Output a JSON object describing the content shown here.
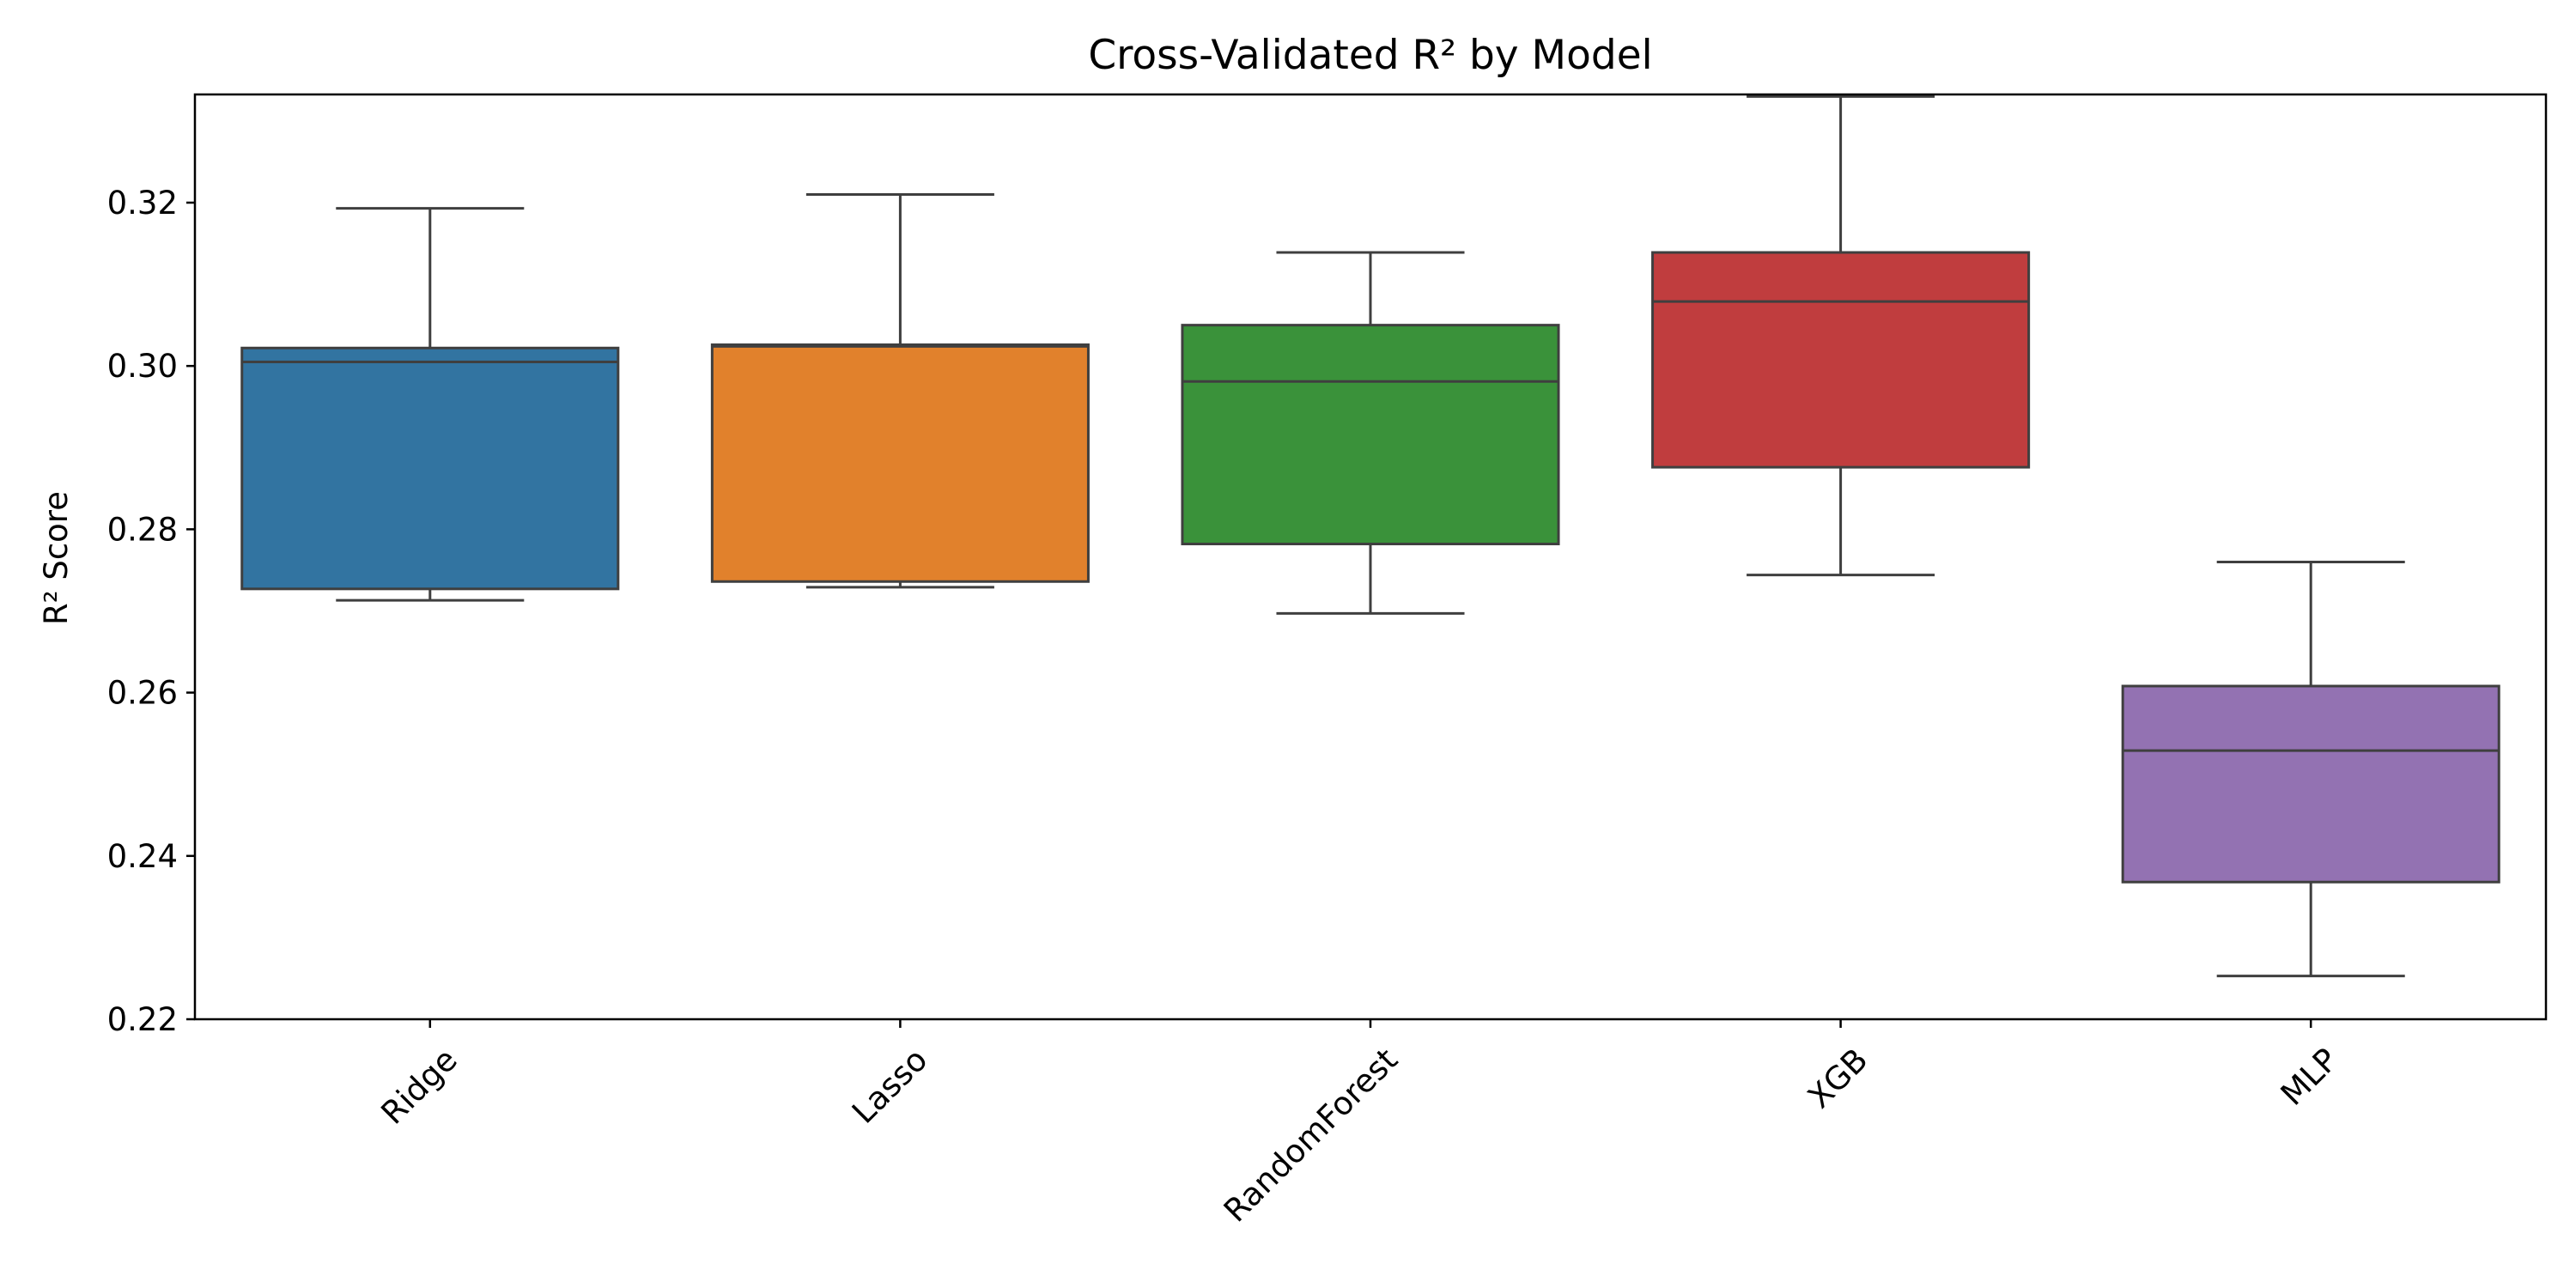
{
  "chart_data": {
    "type": "box",
    "title": "Cross-Validated R² by Model",
    "xlabel": "",
    "ylabel": "R² Score",
    "ylim": [
      0.22,
      0.338
    ],
    "yticks": [
      0.22,
      0.24,
      0.26,
      0.28,
      0.3,
      0.32
    ],
    "ytick_labels": [
      "0.22",
      "0.24",
      "0.26",
      "0.28",
      "0.30",
      "0.32"
    ],
    "categories": [
      "Ridge",
      "Lasso",
      "RandomForest",
      "XGB",
      "MLP"
    ],
    "grid": false,
    "legend": "none",
    "boxes": [
      {
        "category": "Ridge",
        "whisker_low": 0.2713,
        "q1": 0.2727,
        "median": 0.3005,
        "q3": 0.3022,
        "whisker_high": 0.3193,
        "color": "#3274a1"
      },
      {
        "category": "Lasso",
        "whisker_low": 0.2729,
        "q1": 0.2736,
        "median": 0.3024,
        "q3": 0.3026,
        "whisker_high": 0.321,
        "color": "#e1812c"
      },
      {
        "category": "RandomForest",
        "whisker_low": 0.2697,
        "q1": 0.2782,
        "median": 0.2981,
        "q3": 0.305,
        "whisker_high": 0.3139,
        "color": "#3a923a"
      },
      {
        "category": "XGB",
        "whisker_low": 0.2744,
        "q1": 0.2876,
        "median": 0.3079,
        "q3": 0.3139,
        "whisker_high": 0.333,
        "color": "#c03d3e"
      },
      {
        "category": "MLP",
        "whisker_low": 0.2253,
        "q1": 0.2368,
        "median": 0.2529,
        "q3": 0.2608,
        "whisker_high": 0.276,
        "color": "#9372b2"
      }
    ]
  }
}
